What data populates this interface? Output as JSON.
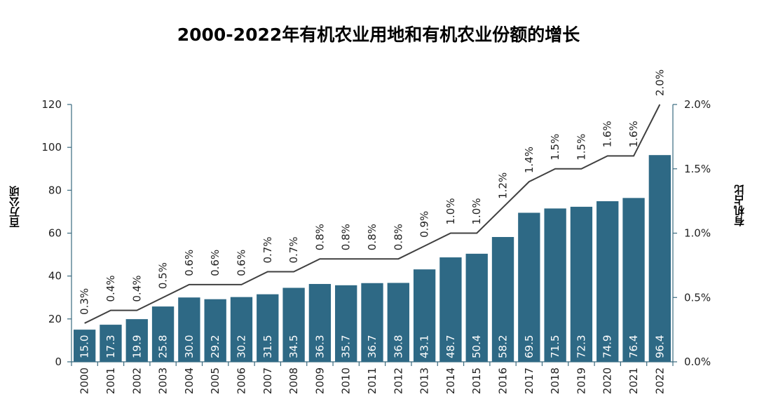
{
  "chart_data": {
    "type": "bar",
    "title": "2000-2022年有机农业用地和有机农业份额的增长",
    "ylabel": "百万公顷",
    "y2label": "有机占比",
    "categories": [
      "2000",
      "2001",
      "2002",
      "2003",
      "2004",
      "2005",
      "2006",
      "2007",
      "2008",
      "2009",
      "2010",
      "2011",
      "2012",
      "2013",
      "2014",
      "2015",
      "2016",
      "2017",
      "2018",
      "2019",
      "2020",
      "2021",
      "2022"
    ],
    "series": [
      {
        "type": "bar",
        "axis": "left",
        "color": "#2e6985",
        "values": [
          15.0,
          17.3,
          19.9,
          25.8,
          30.0,
          29.2,
          30.2,
          31.5,
          34.5,
          36.3,
          35.7,
          36.7,
          36.8,
          43.1,
          48.7,
          50.4,
          58.2,
          69.5,
          71.5,
          72.3,
          74.9,
          76.4,
          96.4
        ],
        "labels": [
          "15.0",
          "17.3",
          "19.9",
          "25.8",
          "30.0",
          "29.2",
          "30.2",
          "31.5",
          "34.5",
          "36.3",
          "35.7",
          "36.7",
          "36.8",
          "43.1",
          "48.7",
          "50.4",
          "58.2",
          "69.5",
          "71.5",
          "72.3",
          "74.9",
          "76.4",
          "96.4"
        ]
      },
      {
        "type": "line",
        "axis": "right",
        "color": "#404040",
        "values": [
          0.3,
          0.4,
          0.4,
          0.5,
          0.6,
          0.6,
          0.6,
          0.7,
          0.7,
          0.8,
          0.8,
          0.8,
          0.8,
          0.9,
          1.0,
          1.0,
          1.2,
          1.4,
          1.5,
          1.5,
          1.6,
          1.6,
          2.0
        ],
        "labels": [
          "0.3%",
          "0.4%",
          "0.4%",
          "0.5%",
          "0.6%",
          "0.6%",
          "0.6%",
          "0.7%",
          "0.7%",
          "0.8%",
          "0.8%",
          "0.8%",
          "0.8%",
          "0.9%",
          "1.0%",
          "1.0%",
          "1.2%",
          "1.4%",
          "1.5%",
          "1.5%",
          "1.6%",
          "1.6%",
          "2.0%"
        ]
      }
    ],
    "ylim": [
      0,
      120
    ],
    "y_ticks": [
      "0",
      "20",
      "40",
      "60",
      "80",
      "100",
      "120"
    ],
    "y2lim": [
      0,
      2.0
    ],
    "y2_ticks": [
      "0.0%",
      "0.5%",
      "1.0%",
      "1.5%",
      "2.0%"
    ],
    "grid": false,
    "legend": "none"
  }
}
